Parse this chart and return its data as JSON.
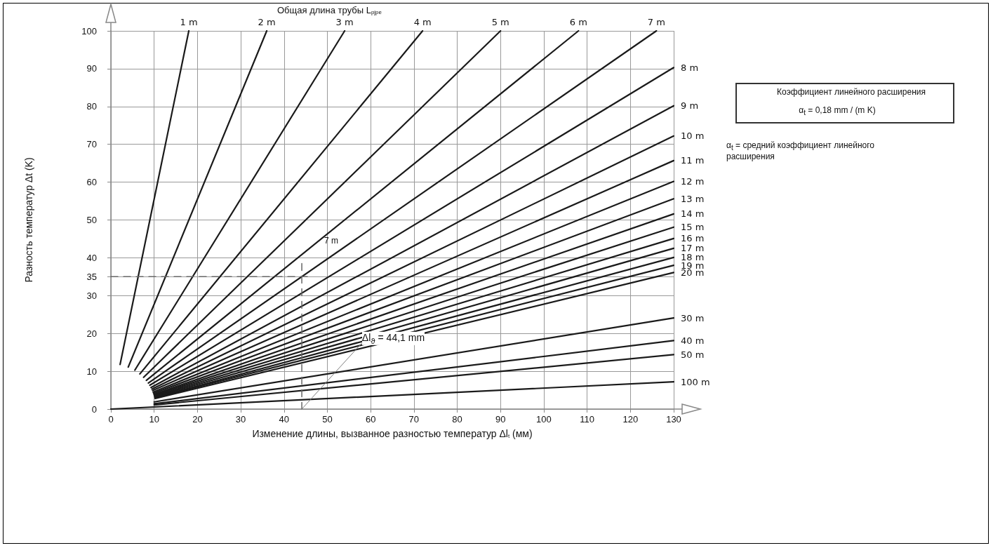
{
  "chart_data": {
    "type": "line",
    "title": "Общая длина трубы L$_{pjpe}$",
    "xlabel": "Изменение длины, вызванное разностью температур Δl$_{t}$ (мм)",
    "ylabel": "Разность температур Δt (K)",
    "xlim": [
      0,
      130
    ],
    "ylim": [
      0,
      100
    ],
    "xticks": [
      0,
      10,
      20,
      30,
      40,
      50,
      60,
      70,
      80,
      90,
      100,
      110,
      120,
      130
    ],
    "yticks": [
      0,
      10,
      20,
      30,
      35,
      40,
      50,
      60,
      70,
      80,
      90,
      100
    ],
    "grid": true,
    "legend": false,
    "marker": "none",
    "line_style": "solid",
    "series": [
      {
        "name": "1 m",
        "color": "#1a1a1a",
        "x": [
          2.13,
          18
        ],
        "values": [
          11.8,
          100
        ]
      },
      {
        "name": "2 m",
        "color": "#1a1a1a",
        "x": [
          4.01,
          36
        ],
        "values": [
          11.1,
          100
        ]
      },
      {
        "name": "3 m",
        "color": "#1a1a1a",
        "x": [
          5.54,
          54
        ],
        "values": [
          10.3,
          100
        ]
      },
      {
        "name": "4 m",
        "color": "#1a1a1a",
        "x": [
          6.7,
          72
        ],
        "values": [
          9.3,
          100
        ]
      },
      {
        "name": "5 m",
        "color": "#1a1a1a",
        "x": [
          7.56,
          90
        ],
        "values": [
          8.4,
          100
        ]
      },
      {
        "name": "6 m",
        "color": "#1a1a1a",
        "x": [
          8.19,
          108
        ],
        "values": [
          7.6,
          100
        ]
      },
      {
        "name": "7 m",
        "color": "#1a1a1a",
        "x": [
          8.66,
          126
        ],
        "values": [
          6.9,
          100
        ]
      },
      {
        "name": "8 m",
        "color": "#1a1a1a",
        "x": [
          9.0,
          130
        ],
        "values": [
          6.3,
          90.3
        ]
      },
      {
        "name": "9 m",
        "color": "#1a1a1a",
        "x": [
          9.27,
          130
        ],
        "values": [
          5.7,
          80.2
        ]
      },
      {
        "name": "10 m",
        "color": "#1a1a1a",
        "x": [
          9.48,
          130
        ],
        "values": [
          5.3,
          72.2
        ]
      },
      {
        "name": "11 m",
        "color": "#1a1a1a",
        "x": [
          9.64,
          130
        ],
        "values": [
          4.9,
          65.7
        ]
      },
      {
        "name": "12 m",
        "color": "#1a1a1a",
        "x": [
          9.77,
          130
        ],
        "values": [
          4.5,
          60.2
        ]
      },
      {
        "name": "13 m",
        "color": "#1a1a1a",
        "x": [
          9.87,
          130
        ],
        "values": [
          4.2,
          55.6
        ]
      },
      {
        "name": "14 m",
        "color": "#1a1a1a",
        "x": [
          9.95,
          130
        ],
        "values": [
          3.9,
          51.6
        ]
      },
      {
        "name": "15 m",
        "color": "#1a1a1a",
        "x": [
          10.02,
          130
        ],
        "values": [
          3.7,
          48.1
        ]
      },
      {
        "name": "16 m",
        "color": "#1a1a1a",
        "x": [
          10.08,
          130
        ],
        "values": [
          3.5,
          45.1
        ]
      },
      {
        "name": "17 m",
        "color": "#1a1a1a",
        "x": [
          10.13,
          130
        ],
        "values": [
          3.3,
          42.5
        ]
      },
      {
        "name": "18 m",
        "color": "#1a1a1a",
        "x": [
          10.17,
          130
        ],
        "values": [
          3.1,
          40.1
        ]
      },
      {
        "name": "19 m",
        "color": "#1a1a1a",
        "x": [
          10.21,
          130
        ],
        "values": [
          3.0,
          38.0
        ]
      },
      {
        "name": "20 m",
        "color": "#1a1a1a",
        "x": [
          10.24,
          130
        ],
        "values": [
          2.8,
          36.1
        ]
      },
      {
        "name": "30 m",
        "color": "#1a1a1a",
        "x": [
          10,
          130
        ],
        "values": [
          1.9,
          24.1
        ]
      },
      {
        "name": "40 m",
        "color": "#1a1a1a",
        "x": [
          10,
          130
        ],
        "values": [
          1.4,
          18.1
        ]
      },
      {
        "name": "50 m",
        "color": "#1a1a1a",
        "x": [
          10,
          130
        ],
        "values": [
          1.1,
          14.4
        ]
      },
      {
        "name": "100 m",
        "color": "#1a1a1a",
        "x": [
          0,
          130
        ],
        "values": [
          0,
          7.2
        ]
      },
      {
        "color": "#666666",
        "line_style": "dashed",
        "x": [
          0,
          46
        ],
        "values": [
          35,
          35
        ]
      },
      {
        "color": "#666666",
        "line_style": "dashed",
        "x": [
          44.1,
          44.1
        ],
        "values": [
          38.5,
          0
        ]
      },
      {
        "color": "#808080",
        "x": [
          44.1,
          58
        ],
        "values": [
          0,
          17.5
        ]
      }
    ],
    "annotations": [
      "7 m",
      {
        "text": "Δl$_{ϑ}$ = 44,1 mm",
        "x": 58,
        "y": 18
      },
      "Коэффициент линейного расширения",
      "α$_{t}$ = 0,18 mm / (m  K)",
      "α$_{t}$ = средний коэффициент линейного расширения"
    ]
  }
}
